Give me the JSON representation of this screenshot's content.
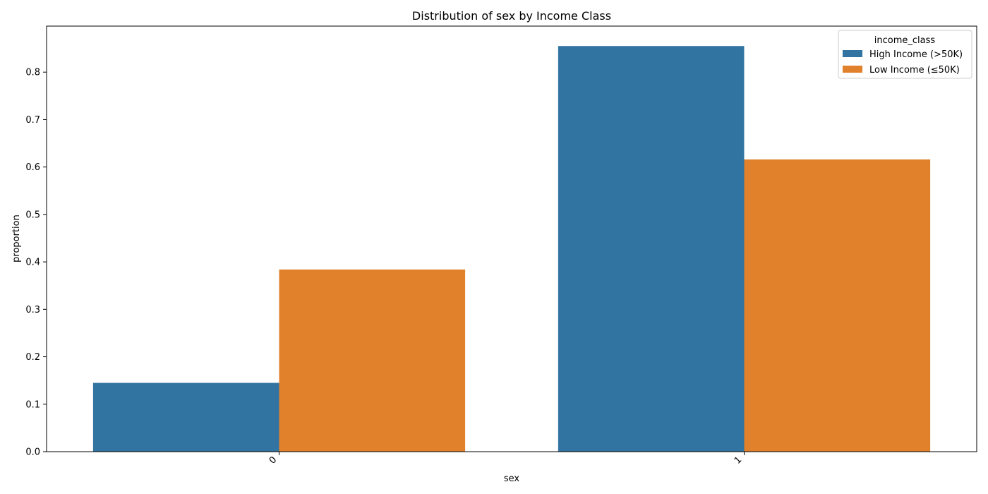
{
  "chart_data": {
    "type": "bar",
    "title": "Distribution of sex by Income Class",
    "xlabel": "sex",
    "ylabel": "proportion",
    "categories": [
      "0",
      "1"
    ],
    "series": [
      {
        "name": "High Income (>50K)",
        "color": "#3274a1",
        "values": [
          0.145,
          0.855
        ]
      },
      {
        "name": "Low Income (≤50K)",
        "color": "#e1812c",
        "values": [
          0.384,
          0.616
        ]
      }
    ],
    "ylim": [
      0,
      0.897
    ],
    "yticks": [
      0.0,
      0.1,
      0.2,
      0.3,
      0.4,
      0.5,
      0.6,
      0.7,
      0.8
    ],
    "ytick_labels": [
      "0.0",
      "0.1",
      "0.2",
      "0.3",
      "0.4",
      "0.5",
      "0.6",
      "0.7",
      "0.8"
    ],
    "legend": {
      "title": "income_class",
      "position": "top-right"
    },
    "grid": false
  }
}
